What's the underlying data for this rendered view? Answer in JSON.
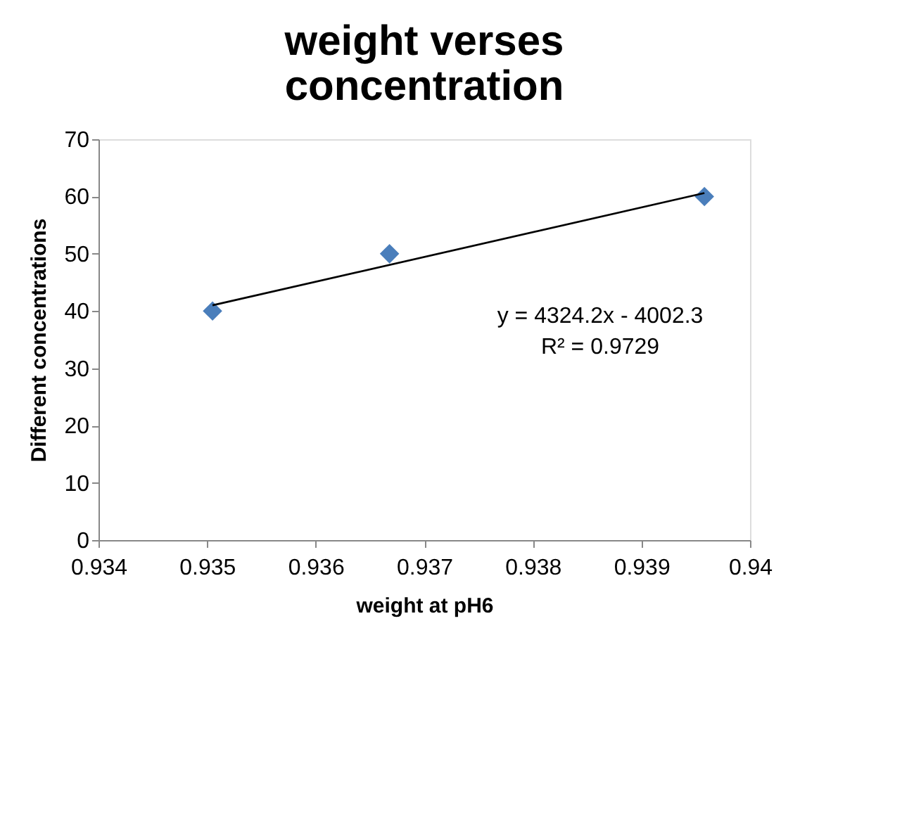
{
  "chart_data": {
    "type": "scatter",
    "title": "weight verses concentration",
    "xlabel": "weight at pH6",
    "ylabel": "Different concentrations",
    "series": [
      {
        "type": "scatter",
        "color": "#4a7ebb",
        "marker": "diamond",
        "x": [
          0.93505,
          0.93668,
          0.93958
        ],
        "values": [
          40,
          50,
          60
        ]
      },
      {
        "type": "line",
        "color": "#000000",
        "line_style": "solid",
        "x": [
          0.93505,
          0.93958
        ],
        "values": [
          41.0,
          60.6
        ]
      }
    ],
    "xlim": [
      0.934,
      0.94
    ],
    "xticks": [
      0.934,
      0.935,
      0.936,
      0.937,
      0.938,
      0.939,
      0.94
    ],
    "ylim": [
      0,
      70
    ],
    "yticks": [
      0,
      10,
      20,
      30,
      40,
      50,
      60,
      70
    ],
    "annotations": [
      "y = 4324.2x - 4002.3",
      "R² = 0.9729"
    ],
    "grid": false,
    "legend": false
  }
}
